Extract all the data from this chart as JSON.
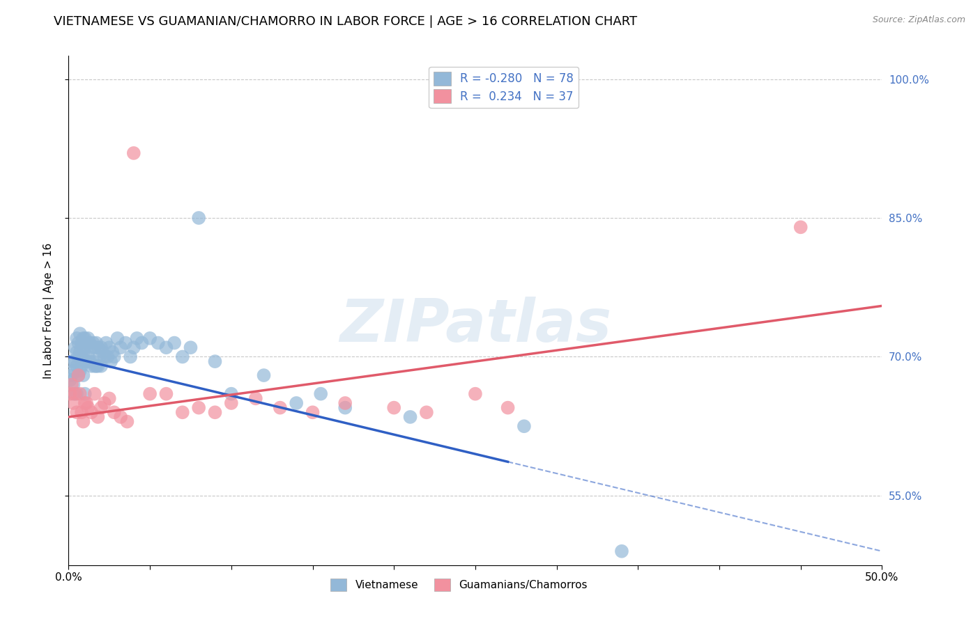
{
  "title": "VIETNAMESE VS GUAMANIAN/CHAMORRO IN LABOR FORCE | AGE > 16 CORRELATION CHART",
  "source": "Source: ZipAtlas.com",
  "xlabel": "",
  "ylabel": "In Labor Force | Age > 16",
  "watermark": "ZIPatlas",
  "xmin": 0.0,
  "xmax": 0.5,
  "ymin": 0.475,
  "ymax": 1.025,
  "yticks": [
    0.55,
    0.7,
    0.85,
    1.0
  ],
  "ytick_labels": [
    "55.0%",
    "70.0%",
    "85.0%",
    "100.0%"
  ],
  "xticks": [
    0.0,
    0.05,
    0.1,
    0.15,
    0.2,
    0.25,
    0.3,
    0.35,
    0.4,
    0.45,
    0.5
  ],
  "xtick_labels": [
    "0.0%",
    "",
    "",
    "",
    "",
    "",
    "",
    "",
    "",
    "",
    "50.0%"
  ],
  "viet_color": "#93b8d8",
  "guam_color": "#f2919f",
  "viet_R": -0.28,
  "viet_N": 78,
  "guam_R": 0.234,
  "guam_N": 37,
  "viet_line_color": "#2f5fc4",
  "guam_line_color": "#e05a6a",
  "legend_label_viet": "Vietnamese",
  "legend_label_guam": "Guamanians/Chamorros",
  "viet_line_solid_end": 0.27,
  "background_color": "#ffffff",
  "grid_color": "#c8c8c8",
  "right_ytick_color": "#4472C4",
  "title_fontsize": 13,
  "axis_label_fontsize": 11,
  "viet_x": [
    0.001,
    0.002,
    0.002,
    0.003,
    0.003,
    0.003,
    0.004,
    0.004,
    0.005,
    0.005,
    0.005,
    0.005,
    0.006,
    0.006,
    0.006,
    0.007,
    0.007,
    0.007,
    0.008,
    0.008,
    0.008,
    0.009,
    0.009,
    0.009,
    0.01,
    0.01,
    0.01,
    0.01,
    0.011,
    0.011,
    0.012,
    0.012,
    0.013,
    0.013,
    0.014,
    0.014,
    0.015,
    0.015,
    0.016,
    0.016,
    0.017,
    0.017,
    0.018,
    0.018,
    0.019,
    0.02,
    0.02,
    0.021,
    0.022,
    0.023,
    0.024,
    0.025,
    0.026,
    0.027,
    0.028,
    0.03,
    0.032,
    0.035,
    0.038,
    0.04,
    0.042,
    0.045,
    0.05,
    0.055,
    0.06,
    0.065,
    0.07,
    0.075,
    0.08,
    0.09,
    0.1,
    0.12,
    0.14,
    0.155,
    0.17,
    0.21,
    0.28,
    0.34
  ],
  "viet_y": [
    0.675,
    0.695,
    0.68,
    0.66,
    0.67,
    0.685,
    0.71,
    0.695,
    0.72,
    0.705,
    0.69,
    0.66,
    0.715,
    0.7,
    0.68,
    0.725,
    0.705,
    0.685,
    0.715,
    0.7,
    0.69,
    0.72,
    0.705,
    0.68,
    0.72,
    0.71,
    0.695,
    0.66,
    0.715,
    0.695,
    0.72,
    0.7,
    0.715,
    0.695,
    0.71,
    0.69,
    0.715,
    0.695,
    0.71,
    0.69,
    0.715,
    0.69,
    0.71,
    0.69,
    0.7,
    0.71,
    0.69,
    0.705,
    0.7,
    0.715,
    0.7,
    0.71,
    0.695,
    0.705,
    0.7,
    0.72,
    0.71,
    0.715,
    0.7,
    0.71,
    0.72,
    0.715,
    0.72,
    0.715,
    0.71,
    0.715,
    0.7,
    0.71,
    0.85,
    0.695,
    0.66,
    0.68,
    0.65,
    0.66,
    0.645,
    0.635,
    0.625,
    0.49
  ],
  "guam_x": [
    0.001,
    0.002,
    0.003,
    0.004,
    0.005,
    0.006,
    0.007,
    0.008,
    0.009,
    0.01,
    0.011,
    0.012,
    0.014,
    0.016,
    0.018,
    0.02,
    0.022,
    0.025,
    0.028,
    0.032,
    0.036,
    0.04,
    0.05,
    0.06,
    0.07,
    0.08,
    0.09,
    0.1,
    0.115,
    0.13,
    0.15,
    0.17,
    0.2,
    0.22,
    0.25,
    0.27,
    0.45
  ],
  "guam_y": [
    0.66,
    0.67,
    0.65,
    0.66,
    0.64,
    0.68,
    0.66,
    0.64,
    0.63,
    0.65,
    0.65,
    0.645,
    0.64,
    0.66,
    0.635,
    0.645,
    0.65,
    0.655,
    0.64,
    0.635,
    0.63,
    0.92,
    0.66,
    0.66,
    0.64,
    0.645,
    0.64,
    0.65,
    0.655,
    0.645,
    0.64,
    0.65,
    0.645,
    0.64,
    0.66,
    0.645,
    0.84
  ]
}
